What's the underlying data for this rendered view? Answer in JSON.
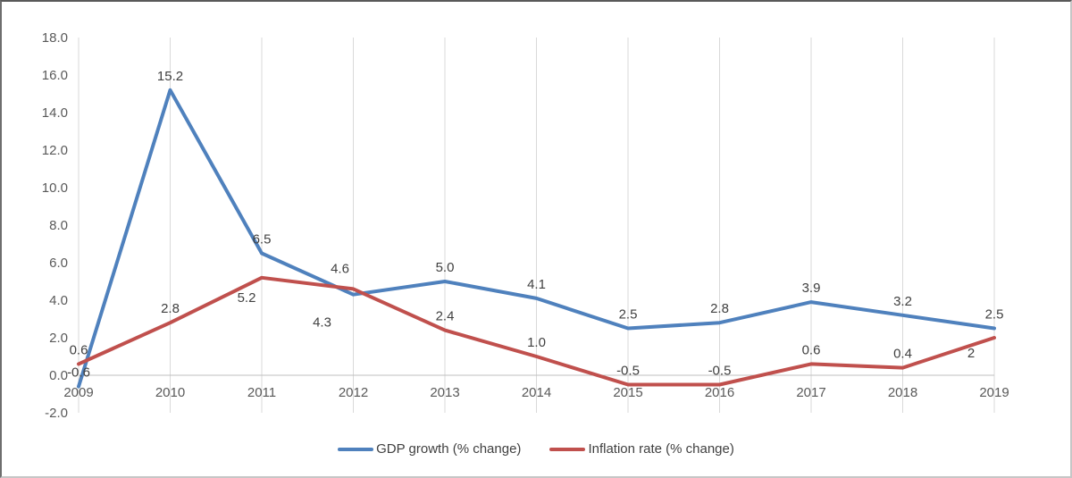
{
  "chart_data": {
    "type": "line",
    "title": "",
    "xlabel": "",
    "ylabel": "",
    "categories": [
      "2009",
      "2010",
      "2011",
      "2012",
      "2013",
      "2014",
      "2015",
      "2016",
      "2017",
      "2018",
      "2019"
    ],
    "series": [
      {
        "key": "gdp-growth",
        "name": "GDP growth (% change)",
        "color": "#4F81BD",
        "values": [
          -0.6,
          15.2,
          6.5,
          4.3,
          5.0,
          4.1,
          2.5,
          2.8,
          3.9,
          3.2,
          2.5
        ],
        "labels": [
          "-0.6",
          "15.2",
          "6.5",
          "4.3",
          "5.0",
          "4.1",
          "2.5",
          "2.8",
          "3.9",
          "3.2",
          "2.5"
        ]
      },
      {
        "key": "inflation-rate",
        "name": "Inflation rate (% change)",
        "color": "#C0504D",
        "values": [
          0.6,
          2.8,
          5.2,
          4.6,
          2.4,
          1.0,
          -0.5,
          -0.5,
          0.6,
          0.4,
          2
        ],
        "labels": [
          "0.6",
          "2.8",
          "5.2",
          "4.6",
          "2.4",
          "1.0",
          "-0.5",
          "-0.5",
          "0.6",
          "0.4",
          "2"
        ]
      }
    ],
    "y_axis": {
      "min": -2.0,
      "max": 18.0,
      "step": 2.0,
      "tick_labels": [
        "18.0",
        "16.0",
        "14.0",
        "12.0",
        "10.0",
        "8.0",
        "6.0",
        "4.0",
        "2.0",
        "0.0",
        "-2.0"
      ]
    },
    "grid": "vertical-only",
    "legend_position": "bottom"
  },
  "colors": {
    "gridline": "#D9D9D9",
    "axis_line": "#BFBFBF",
    "axis_text": "#595959",
    "data_label_text": "#404040",
    "background": "#FFFFFF"
  }
}
